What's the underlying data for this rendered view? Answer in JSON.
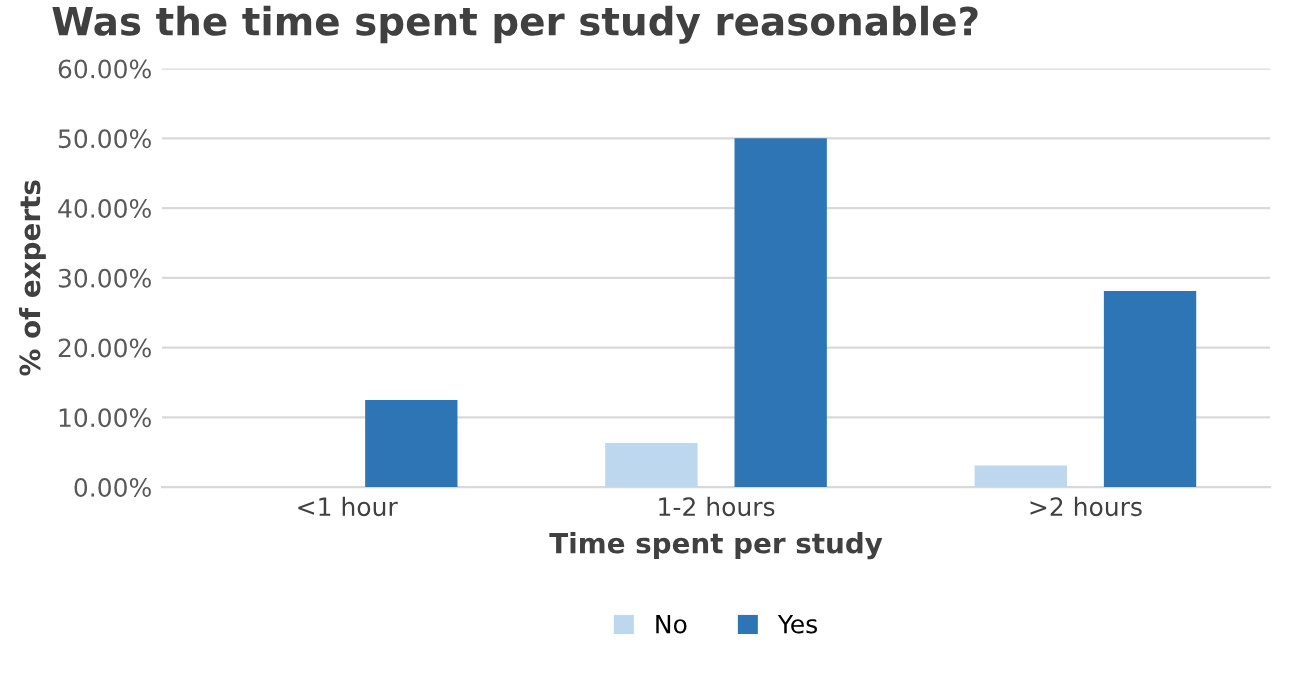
{
  "chart_data": {
    "type": "bar",
    "title": "Was the time spent per study reasonable?",
    "xlabel": "Time spent per study",
    "ylabel": "% of experts",
    "categories": [
      "<1 hour",
      "1-2 hours",
      ">2 hours"
    ],
    "series": [
      {
        "name": "No",
        "color": "#bdd7ee",
        "values": [
          0,
          6.3,
          3.1
        ]
      },
      {
        "name": "Yes",
        "color": "#2e75b6",
        "values": [
          12.5,
          50,
          28.1
        ]
      }
    ],
    "ylim": [
      0,
      60
    ],
    "yticks": [
      {
        "value": 0,
        "label": "0.00%"
      },
      {
        "value": 10,
        "label": "10.00%"
      },
      {
        "value": 20,
        "label": "20.00%"
      },
      {
        "value": 30,
        "label": "30.00%"
      },
      {
        "value": 40,
        "label": "40.00%"
      },
      {
        "value": 50,
        "label": "50.00%"
      },
      {
        "value": 60,
        "label": "60.00%"
      }
    ],
    "grid": "y",
    "legend": "bottom"
  }
}
